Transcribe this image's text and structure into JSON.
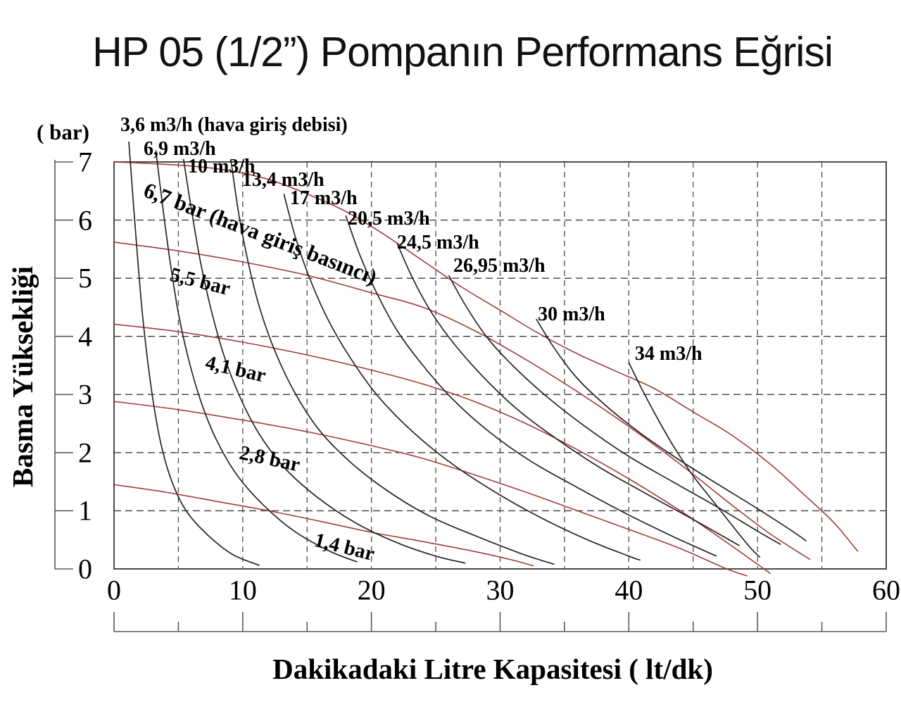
{
  "page": {
    "title": "HP 05 (1/2”) Pompanın Performans Eğrisi"
  },
  "chart_data": {
    "type": "line",
    "title": "HP 05 (1/2”) Pompanın Performans Eğrisi",
    "xlabel": "Dakikadaki Litre Kapasitesi ( lt/dk)",
    "ylabel": "Basma Yüksekliği",
    "y_unit": "( bar)",
    "xlim": [
      0,
      60
    ],
    "ylim": [
      0,
      7
    ],
    "x_major_ticks": [
      0,
      10,
      20,
      30,
      40,
      50,
      60
    ],
    "x_minor_ticks": [
      5,
      15,
      25,
      35,
      45,
      55
    ],
    "y_ticks": [
      7,
      6,
      5,
      4,
      3,
      2,
      1,
      0
    ],
    "grid": {
      "h_lines": [
        1,
        2,
        3,
        4,
        5,
        6
      ],
      "v_lines": [
        5,
        10,
        15,
        20,
        25,
        30,
        35,
        40,
        45,
        50,
        55
      ]
    },
    "colors": {
      "flow_curve": "#252525",
      "pressure_curve": "#a33e38",
      "h_grid": "#3f3f3f",
      "v_grid": "#4d4d4d",
      "border": "#4a4a4a",
      "ruler": "#5a5a5a",
      "text": "#000000"
    },
    "legend_notes": {
      "flow_family": "hava giriş debisi",
      "pressure_family": "hava giriş basıncı"
    },
    "pressure_curves": [
      {
        "name": "pressure-6-7-bar",
        "label": "6,7 bar (hava giriş basıncı)",
        "value_bar": 6.7,
        "label_at": [
          2.73,
          6.73
        ],
        "label_rotation": 21,
        "label_size": 31,
        "points": [
          [
            0,
            7.0
          ],
          [
            3,
            6.97
          ],
          [
            6,
            6.93
          ],
          [
            9,
            6.85
          ],
          [
            12,
            6.7
          ],
          [
            15,
            6.45
          ],
          [
            18,
            6.15
          ],
          [
            21,
            5.75
          ],
          [
            24,
            5.3
          ],
          [
            27,
            4.85
          ],
          [
            30,
            4.45
          ],
          [
            33,
            4.05
          ],
          [
            36,
            3.7
          ],
          [
            39,
            3.4
          ],
          [
            42,
            3.1
          ],
          [
            45,
            2.7
          ],
          [
            48,
            2.3
          ],
          [
            51,
            1.8
          ],
          [
            54,
            1.2
          ],
          [
            56,
            0.78
          ],
          [
            57.8,
            0.3
          ]
        ]
      },
      {
        "name": "pressure-5-5-bar",
        "label": "5,5 bar",
        "value_bar": 5.5,
        "label_at": [
          4.59,
          5.26
        ],
        "label_rotation": 14,
        "label_size": 29,
        "points": [
          [
            0,
            5.62
          ],
          [
            5,
            5.47
          ],
          [
            10,
            5.28
          ],
          [
            15,
            5.05
          ],
          [
            20,
            4.75
          ],
          [
            24,
            4.5
          ],
          [
            28,
            4.1
          ],
          [
            32,
            3.6
          ],
          [
            36,
            3.05
          ],
          [
            40,
            2.45
          ],
          [
            44,
            1.8
          ],
          [
            48,
            1.1
          ],
          [
            51,
            0.6
          ],
          [
            54.1,
            0.16
          ]
        ]
      },
      {
        "name": "pressure-4-1-bar",
        "label": "4,1 bar",
        "value_bar": 4.1,
        "label_at": [
          7.33,
          3.74
        ],
        "label_rotation": 13,
        "label_size": 29,
        "points": [
          [
            0,
            4.21
          ],
          [
            5,
            4.08
          ],
          [
            10,
            3.9
          ],
          [
            15,
            3.68
          ],
          [
            20,
            3.42
          ],
          [
            24,
            3.18
          ],
          [
            28,
            2.88
          ],
          [
            32,
            2.5
          ],
          [
            36,
            2.05
          ],
          [
            40,
            1.55
          ],
          [
            44,
            1.0
          ],
          [
            47,
            0.55
          ],
          [
            50,
            0.08
          ],
          [
            51,
            -0.08
          ]
        ]
      },
      {
        "name": "pressure-2-8-bar",
        "label": "2,8 bar",
        "value_bar": 2.8,
        "label_at": [
          9.95,
          2.19
        ],
        "label_rotation": 12,
        "label_size": 29,
        "points": [
          [
            0,
            2.88
          ],
          [
            5,
            2.74
          ],
          [
            10,
            2.56
          ],
          [
            15,
            2.36
          ],
          [
            20,
            2.12
          ],
          [
            24,
            1.9
          ],
          [
            28,
            1.62
          ],
          [
            32,
            1.32
          ],
          [
            36,
            1.0
          ],
          [
            40,
            0.68
          ],
          [
            44,
            0.35
          ],
          [
            47.6,
            0.0
          ],
          [
            49.2,
            -0.12
          ]
        ]
      },
      {
        "name": "pressure-1-4-bar",
        "label": "1,4 bar",
        "value_bar": 1.4,
        "label_at": [
          15.81,
          0.69
        ],
        "label_rotation": 14,
        "label_size": 29,
        "points": [
          [
            0,
            1.45
          ],
          [
            4,
            1.32
          ],
          [
            8,
            1.16
          ],
          [
            12,
            1.0
          ],
          [
            16,
            0.82
          ],
          [
            20,
            0.63
          ],
          [
            24,
            0.47
          ],
          [
            28,
            0.3
          ],
          [
            31,
            0.15
          ],
          [
            32.6,
            0.05
          ]
        ]
      }
    ],
    "flow_curves": [
      {
        "name": "flow-3-6-m3h",
        "label": "3,6 m3/h (hava giriş debisi)",
        "value_m3h": 3.6,
        "label_at": [
          0.49,
          7.82
        ],
        "label_size": 28,
        "points": [
          [
            1.15,
            7.35
          ],
          [
            1.5,
            6.3
          ],
          [
            1.85,
            5.3
          ],
          [
            2.2,
            4.4
          ],
          [
            2.6,
            3.6
          ],
          [
            3.1,
            2.8
          ],
          [
            3.7,
            2.1
          ],
          [
            4.5,
            1.5
          ],
          [
            5.6,
            1.0
          ],
          [
            7.2,
            0.6
          ],
          [
            9.2,
            0.25
          ],
          [
            11.3,
            0.06
          ]
        ]
      },
      {
        "name": "flow-6-9-m3h",
        "label": "6,9 m3/h",
        "value_m3h": 6.9,
        "label_at": [
          2.3,
          7.41
        ],
        "label_size": 28,
        "points": [
          [
            3.25,
            7.2
          ],
          [
            3.8,
            6.2
          ],
          [
            4.35,
            5.3
          ],
          [
            5.0,
            4.4
          ],
          [
            5.8,
            3.6
          ],
          [
            6.8,
            2.85
          ],
          [
            8.0,
            2.2
          ],
          [
            9.6,
            1.6
          ],
          [
            11.6,
            1.1
          ],
          [
            14,
            0.65
          ],
          [
            16.8,
            0.3
          ],
          [
            18.9,
            0.12
          ]
        ]
      },
      {
        "name": "flow-10-m3h",
        "label": "10 m3/h",
        "value_m3h": 10,
        "label_at": [
          5.74,
          7.11
        ],
        "label_size": 28,
        "points": [
          [
            5.4,
            7.05
          ],
          [
            6.0,
            6.2
          ],
          [
            6.7,
            5.3
          ],
          [
            7.5,
            4.5
          ],
          [
            8.5,
            3.7
          ],
          [
            9.7,
            3.0
          ],
          [
            11.2,
            2.35
          ],
          [
            13.2,
            1.75
          ],
          [
            15.7,
            1.25
          ],
          [
            18.7,
            0.8
          ],
          [
            22,
            0.45
          ],
          [
            25,
            0.22
          ],
          [
            27.3,
            0.1
          ]
        ]
      },
      {
        "name": "flow-13-4-m3h",
        "label": "13,4 m3/h",
        "value_m3h": 13.4,
        "label_at": [
          9.95,
          6.88
        ],
        "label_size": 28,
        "points": [
          [
            9.1,
            7.0
          ],
          [
            9.7,
            6.1
          ],
          [
            10.4,
            5.3
          ],
          [
            11.3,
            4.5
          ],
          [
            12.5,
            3.75
          ],
          [
            14,
            3.05
          ],
          [
            15.9,
            2.4
          ],
          [
            18.3,
            1.85
          ],
          [
            21.2,
            1.35
          ],
          [
            24.6,
            0.9
          ],
          [
            28.3,
            0.55
          ],
          [
            31.8,
            0.25
          ],
          [
            34.2,
            0.08
          ]
        ]
      },
      {
        "name": "flow-17-m3h",
        "label": "17 m3/h",
        "value_m3h": 17,
        "label_at": [
          13.67,
          6.56
        ],
        "label_size": 28,
        "points": [
          [
            13.2,
            6.45
          ],
          [
            14.1,
            5.7
          ],
          [
            15.2,
            5.0
          ],
          [
            16.6,
            4.3
          ],
          [
            18.3,
            3.65
          ],
          [
            20.4,
            3.0
          ],
          [
            23,
            2.4
          ],
          [
            26,
            1.85
          ],
          [
            29.4,
            1.35
          ],
          [
            33,
            0.9
          ],
          [
            36.8,
            0.5
          ],
          [
            40,
            0.22
          ],
          [
            40.9,
            0.15
          ]
        ]
      },
      {
        "name": "flow-20-5-m3h",
        "label": "20,5 m3/h",
        "value_m3h": 20.5,
        "label_at": [
          18.16,
          6.21
        ],
        "label_size": 28,
        "points": [
          [
            18,
            6.08
          ],
          [
            19.1,
            5.4
          ],
          [
            20.4,
            4.75
          ],
          [
            22,
            4.1
          ],
          [
            24,
            3.5
          ],
          [
            26.4,
            2.9
          ],
          [
            29.2,
            2.35
          ],
          [
            32.4,
            1.85
          ],
          [
            36,
            1.4
          ],
          [
            39.8,
            0.95
          ],
          [
            43.5,
            0.55
          ],
          [
            46,
            0.3
          ],
          [
            46.8,
            0.22
          ]
        ]
      },
      {
        "name": "flow-24-5-m3h",
        "label": "24,5 m3/h",
        "value_m3h": 24.5,
        "label_at": [
          21.99,
          5.8
        ],
        "label_size": 28,
        "points": [
          [
            22,
            5.6
          ],
          [
            23.2,
            5.0
          ],
          [
            24.7,
            4.4
          ],
          [
            26.5,
            3.85
          ],
          [
            28.7,
            3.3
          ],
          [
            31.3,
            2.75
          ],
          [
            34.3,
            2.25
          ],
          [
            37.7,
            1.75
          ],
          [
            41.3,
            1.3
          ],
          [
            45,
            0.85
          ],
          [
            47.8,
            0.5
          ],
          [
            48.6,
            0.4
          ]
        ]
      },
      {
        "name": "flow-26-95-m3h",
        "label": "26,95 m3/h",
        "value_m3h": 26.95,
        "label_at": [
          26.36,
          5.4
        ],
        "label_size": 28,
        "points": [
          [
            26,
            5.05
          ],
          [
            27.4,
            4.5
          ],
          [
            29.1,
            3.95
          ],
          [
            31.2,
            3.45
          ],
          [
            33.7,
            2.95
          ],
          [
            36.6,
            2.45
          ],
          [
            39.9,
            1.95
          ],
          [
            43.4,
            1.5
          ],
          [
            47,
            1.05
          ],
          [
            50,
            0.65
          ],
          [
            51.8,
            0.42
          ]
        ]
      },
      {
        "name": "flow-30-m3h",
        "label": "30 m3/h",
        "value_m3h": 30,
        "label_at": [
          32.93,
          4.57
        ],
        "label_size": 28,
        "points": [
          [
            32.8,
            4.3
          ],
          [
            34.2,
            3.8
          ],
          [
            35.9,
            3.3
          ],
          [
            38,
            2.85
          ],
          [
            40.5,
            2.4
          ],
          [
            43.4,
            1.95
          ],
          [
            46.6,
            1.5
          ],
          [
            49.9,
            1.05
          ],
          [
            52.5,
            0.68
          ],
          [
            53.8,
            0.48
          ]
        ]
      },
      {
        "name": "flow-34-m3h",
        "label": "34 m3/h",
        "value_m3h": 34,
        "label_at": [
          40.47,
          3.89
        ],
        "label_size": 28,
        "points": [
          [
            40,
            3.55
          ],
          [
            41,
            3.1
          ],
          [
            42.2,
            2.6
          ],
          [
            43.5,
            2.1
          ],
          [
            45,
            1.6
          ],
          [
            46.6,
            1.15
          ],
          [
            48.2,
            0.7
          ],
          [
            49.5,
            0.35
          ],
          [
            50.2,
            0.2
          ]
        ]
      }
    ]
  }
}
